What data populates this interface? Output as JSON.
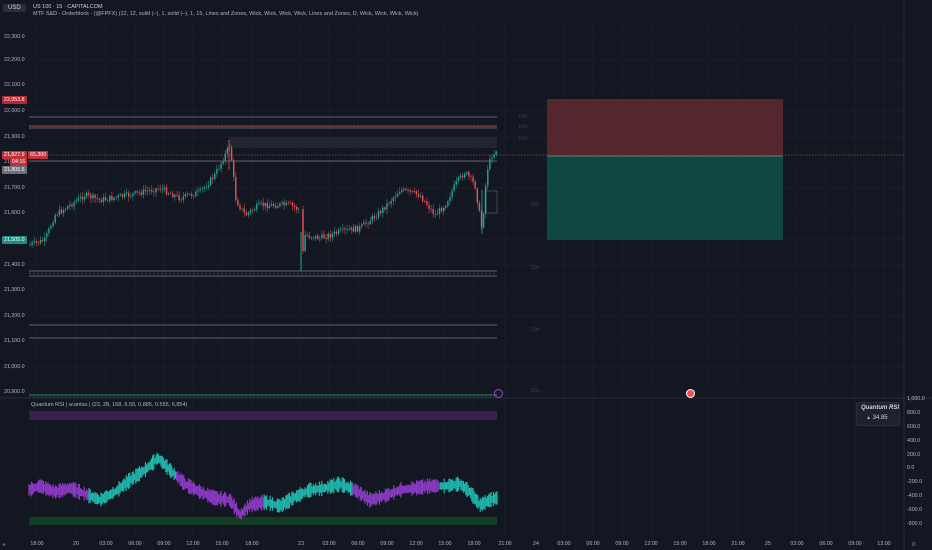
{
  "header": {
    "currency": "USD",
    "symbol": "US 100 · 15 · CAPITALCOM",
    "indicator": "MTF S&D - Orderblock - (@FPFX) (12, 12, solid (–), 1, solid (–), 1, 15, Lines and Zones, Wick, Wick, Wick, Wick, Lines and Zones, D, Wick, Wick, Wick, Wick)"
  },
  "price_axis": [
    "22,300.0",
    "22,200.0",
    "22,100.0",
    "22,000.0",
    "21,900.0",
    "21,800.0",
    "21,700.0",
    "21,600.0",
    "21,500.0",
    "21,400.0",
    "21,300.0",
    "21,200.0",
    "21,100.0",
    "21,000.0",
    "20,900.0"
  ],
  "price_badges": {
    "red_top": "22,053.8",
    "current_price": "21,827.9",
    "current_extra": "65,300",
    "countdown": "04:16",
    "prev_close": "21,805.5",
    "green": "21,505.0"
  },
  "rsi_panel": {
    "title": "Quantum RSI | w.antas | (22, 28, 168, 6.55, 0.885, 0.555, 6,854)",
    "axis": [
      "1,000.0",
      "800.0",
      "600.0",
      "400.0",
      "200.0",
      "0.0",
      "-200.0",
      "-400.0",
      "-600.0",
      "-800.0"
    ],
    "legend_title": "Quantum RSI",
    "legend_value": "34.85"
  },
  "time_axis": [
    "18:00",
    "20",
    "03:00",
    "06:00",
    "09:00",
    "12:00",
    "15:00",
    "18:00",
    "23",
    "03:00",
    "06:00",
    "09:00",
    "12:00",
    "15:00",
    "18:00",
    "21:00",
    "24",
    "03:00",
    "06:00",
    "09:00",
    "12:00",
    "15:00",
    "18:00",
    "21:00",
    "25",
    "03:00",
    "06:00",
    "09:00",
    "12:00"
  ],
  "colors": {
    "background": "#131722",
    "bull": "#26a69a",
    "bear": "#ef5350",
    "rsi_bull": "#22d3c5",
    "rsi_bear": "#a040e0"
  }
}
